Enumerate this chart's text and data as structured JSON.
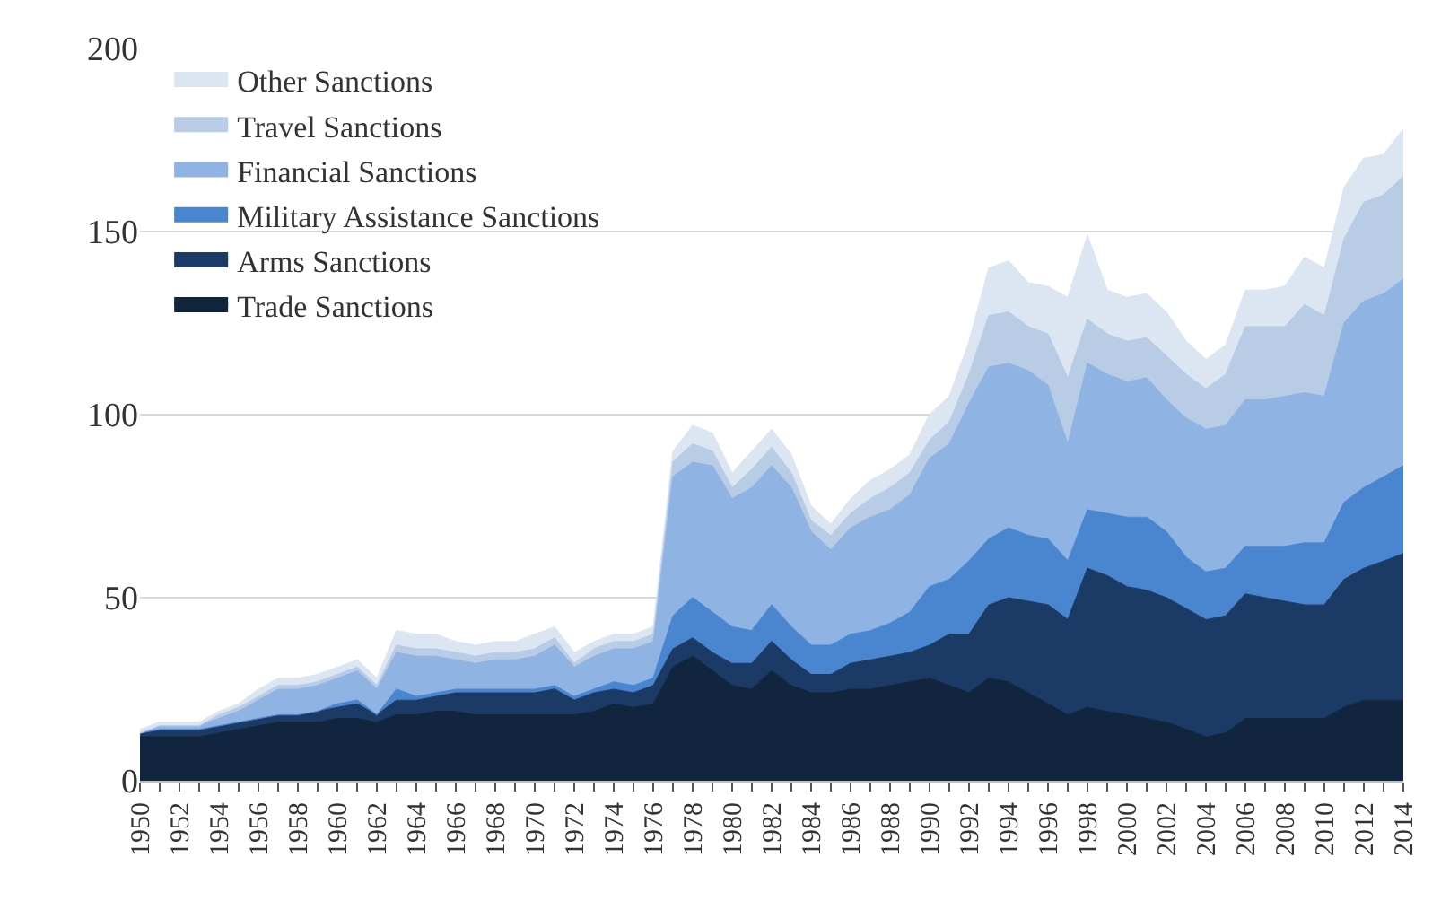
{
  "chart_data": {
    "type": "area",
    "stacked": true,
    "x": [
      1950,
      1951,
      1952,
      1953,
      1954,
      1955,
      1956,
      1957,
      1958,
      1959,
      1960,
      1961,
      1962,
      1963,
      1964,
      1965,
      1966,
      1967,
      1968,
      1969,
      1970,
      1971,
      1972,
      1973,
      1974,
      1975,
      1976,
      1977,
      1978,
      1979,
      1980,
      1981,
      1982,
      1983,
      1984,
      1985,
      1986,
      1987,
      1988,
      1989,
      1990,
      1991,
      1992,
      1993,
      1994,
      1995,
      1996,
      1997,
      1998,
      1999,
      2000,
      2001,
      2002,
      2003,
      2004,
      2005,
      2006,
      2007,
      2008,
      2009,
      2010,
      2011,
      2012,
      2013,
      2014
    ],
    "series": [
      {
        "name": "Trade Sanctions",
        "color": "#12253f",
        "values": [
          12,
          12,
          12,
          12,
          13,
          14,
          15,
          16,
          16,
          16,
          17,
          17,
          16,
          18,
          18,
          19,
          19,
          18,
          18,
          18,
          18,
          18,
          18,
          19,
          21,
          20,
          21,
          31,
          34,
          30,
          26,
          25,
          30,
          26,
          24,
          24,
          25,
          25,
          26,
          27,
          28,
          26,
          24,
          28,
          27,
          24,
          21,
          18,
          20,
          19,
          18,
          17,
          16,
          14,
          12,
          13,
          17,
          17,
          17,
          17,
          17,
          20,
          22,
          22,
          22
        ]
      },
      {
        "name": "Arms Sanctions",
        "color": "#1b3a66",
        "values": [
          1,
          2,
          2,
          2,
          2,
          2,
          2,
          2,
          2,
          3,
          3,
          4,
          2,
          4,
          4,
          4,
          5,
          6,
          6,
          6,
          6,
          7,
          4,
          5,
          4,
          4,
          5,
          5,
          5,
          5,
          6,
          7,
          8,
          7,
          5,
          5,
          7,
          8,
          8,
          8,
          9,
          14,
          16,
          20,
          23,
          25,
          27,
          26,
          38,
          37,
          35,
          35,
          34,
          33,
          32,
          32,
          34,
          33,
          32,
          31,
          31,
          35,
          36,
          38,
          40
        ]
      },
      {
        "name": "Military Assistance Sanctions",
        "color": "#4a86d0",
        "values": [
          0,
          0,
          0,
          0,
          0,
          0,
          0,
          0,
          0,
          0,
          1,
          1,
          0,
          3,
          1,
          1,
          1,
          1,
          1,
          1,
          1,
          1,
          1,
          1,
          2,
          2,
          2,
          9,
          11,
          11,
          10,
          9,
          10,
          9,
          8,
          8,
          8,
          8,
          9,
          11,
          16,
          15,
          20,
          18,
          19,
          18,
          18,
          16,
          16,
          17,
          19,
          20,
          18,
          14,
          13,
          13,
          13,
          14,
          15,
          17,
          17,
          21,
          22,
          23,
          24
        ]
      },
      {
        "name": "Financial Sanctions",
        "color": "#8fb3e3",
        "values": [
          0,
          1,
          1,
          1,
          2,
          3,
          5,
          7,
          7,
          7,
          7,
          8,
          7,
          10,
          11,
          10,
          8,
          7,
          8,
          8,
          9,
          11,
          8,
          9,
          9,
          10,
          10,
          38,
          37,
          40,
          35,
          39,
          38,
          38,
          31,
          26,
          29,
          31,
          31,
          32,
          35,
          37,
          43,
          47,
          45,
          45,
          42,
          32,
          40,
          38,
          37,
          38,
          36,
          38,
          39,
          39,
          40,
          40,
          41,
          41,
          40,
          49,
          51,
          50,
          51
        ]
      },
      {
        "name": "Travel Sanctions",
        "color": "#b8cce6",
        "values": [
          0,
          0,
          0,
          0,
          1,
          1,
          1,
          1,
          1,
          1,
          1,
          1,
          1,
          2,
          2,
          2,
          2,
          2,
          2,
          2,
          2,
          2,
          1,
          2,
          2,
          2,
          2,
          4,
          5,
          4,
          3,
          5,
          5,
          4,
          3,
          4,
          4,
          5,
          6,
          6,
          5,
          6,
          8,
          14,
          14,
          12,
          14,
          18,
          12,
          11,
          11,
          11,
          12,
          12,
          11,
          14,
          20,
          20,
          19,
          24,
          22,
          23,
          27,
          27,
          28
        ]
      },
      {
        "name": "Other Sanctions",
        "color": "#dce5f2",
        "values": [
          1,
          1,
          1,
          1,
          1,
          1,
          2,
          2,
          2,
          2,
          2,
          2,
          2,
          4,
          4,
          4,
          3,
          3,
          3,
          3,
          4,
          3,
          3,
          2,
          2,
          2,
          2,
          3,
          5,
          5,
          4,
          5,
          5,
          5,
          4,
          3,
          4,
          5,
          5,
          5,
          7,
          7,
          9,
          13,
          14,
          12,
          13,
          22,
          23,
          12,
          12,
          12,
          12,
          9,
          8,
          8,
          10,
          10,
          11,
          13,
          13,
          14,
          12,
          11,
          13
        ]
      }
    ],
    "xlim": [
      1950,
      2014
    ],
    "xticks": [
      1950,
      {
        "value": 1951,
        "label": null
      },
      1952,
      {
        "value": 1953,
        "label": null
      },
      1954,
      {
        "value": 1955,
        "label": null
      },
      1956,
      {
        "value": 1957,
        "label": null
      },
      1958,
      {
        "value": 1959,
        "label": null
      },
      1960,
      {
        "value": 1961,
        "label": null
      },
      1962,
      {
        "value": 1963,
        "label": null
      },
      1964,
      {
        "value": 1965,
        "label": null
      },
      1966,
      {
        "value": 1967,
        "label": null
      },
      1968,
      {
        "value": 1969,
        "label": null
      },
      1970,
      {
        "value": 1971,
        "label": null
      },
      1972,
      {
        "value": 1973,
        "label": null
      },
      1974,
      {
        "value": 1975,
        "label": null
      },
      1976,
      {
        "value": 1977,
        "label": null
      },
      1978,
      {
        "value": 1979,
        "label": null
      },
      1980,
      {
        "value": 1981,
        "label": null
      },
      1982,
      {
        "value": 1983,
        "label": null
      },
      1984,
      {
        "value": 1985,
        "label": null
      },
      1986,
      {
        "value": 1987,
        "label": null
      },
      1988,
      {
        "value": 1989,
        "label": null
      },
      1990,
      {
        "value": 1991,
        "label": null
      },
      1992,
      {
        "value": 1993,
        "label": null
      },
      1994,
      {
        "value": 1995,
        "label": null
      },
      1996,
      {
        "value": 1997,
        "label": null
      },
      1998,
      {
        "value": 1999,
        "label": null
      },
      2000,
      {
        "value": 2001,
        "label": null
      },
      2002,
      {
        "value": 2003,
        "label": null
      },
      2004,
      {
        "value": 2005,
        "label": null
      },
      2006,
      {
        "value": 2007,
        "label": null
      },
      2008,
      {
        "value": 2009,
        "label": null
      },
      2010,
      {
        "value": 2011,
        "label": null
      },
      2012,
      {
        "value": 2013,
        "label": null
      },
      2014
    ],
    "ylim": [
      0,
      200
    ],
    "yticks": [
      0,
      50,
      100,
      150,
      200
    ],
    "grid": "y",
    "legend": "top left",
    "line_style": "solid"
  }
}
